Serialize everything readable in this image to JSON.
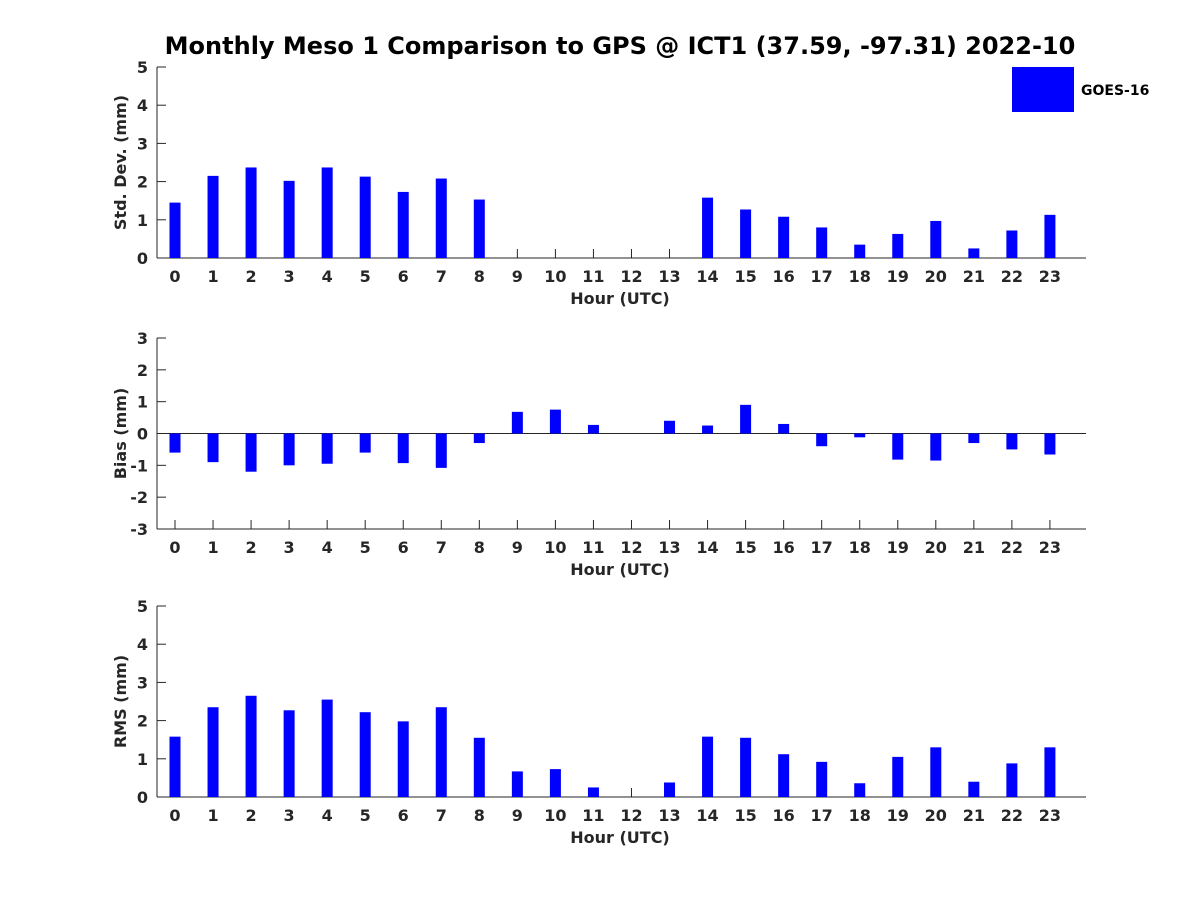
{
  "figure": {
    "title": "Monthly Meso 1 Comparison to GPS @ ICT1 (37.59, -97.31) 2022-10",
    "legend": {
      "label": "GOES-16",
      "color": "#0000ff",
      "position": "top-right"
    }
  },
  "chart_data": [
    {
      "type": "bar",
      "categories": [
        "0",
        "1",
        "2",
        "3",
        "4",
        "5",
        "6",
        "7",
        "8",
        "9",
        "10",
        "11",
        "12",
        "13",
        "14",
        "15",
        "16",
        "17",
        "18",
        "19",
        "20",
        "21",
        "22",
        "23"
      ],
      "series": [
        {
          "name": "GOES-16",
          "color": "#0000ff",
          "values": [
            1.45,
            2.15,
            2.37,
            2.02,
            2.37,
            2.13,
            1.73,
            2.08,
            1.53,
            0,
            0,
            0,
            0,
            0,
            1.58,
            1.27,
            1.08,
            0.8,
            0.35,
            0.63,
            0.97,
            0.25,
            0.72,
            1.13
          ]
        }
      ],
      "xlabel": "Hour (UTC)",
      "ylabel": "Std. Dev. (mm)",
      "ylim": [
        0,
        5
      ],
      "yticks": [
        "0",
        "1",
        "2",
        "3",
        "4",
        "5"
      ]
    },
    {
      "type": "bar",
      "categories": [
        "0",
        "1",
        "2",
        "3",
        "4",
        "5",
        "6",
        "7",
        "8",
        "9",
        "10",
        "11",
        "12",
        "13",
        "14",
        "15",
        "16",
        "17",
        "18",
        "19",
        "20",
        "21",
        "22",
        "23"
      ],
      "series": [
        {
          "name": "GOES-16",
          "color": "#0000ff",
          "values": [
            -0.6,
            -0.9,
            -1.2,
            -1.0,
            -0.95,
            -0.6,
            -0.93,
            -1.08,
            -0.3,
            0.68,
            0.75,
            0.27,
            0,
            0.4,
            0.25,
            0.9,
            0.3,
            -0.4,
            -0.12,
            -0.82,
            -0.85,
            -0.3,
            -0.5,
            -0.66
          ]
        }
      ],
      "xlabel": "Hour (UTC)",
      "ylabel": "Bias (mm)",
      "ylim": [
        -3,
        3
      ],
      "yticks": [
        "-3",
        "-2",
        "-1",
        "0",
        "1",
        "2",
        "3"
      ]
    },
    {
      "type": "bar",
      "categories": [
        "0",
        "1",
        "2",
        "3",
        "4",
        "5",
        "6",
        "7",
        "8",
        "9",
        "10",
        "11",
        "12",
        "13",
        "14",
        "15",
        "16",
        "17",
        "18",
        "19",
        "20",
        "21",
        "22",
        "23"
      ],
      "series": [
        {
          "name": "GOES-16",
          "color": "#0000ff",
          "values": [
            1.58,
            2.35,
            2.65,
            2.27,
            2.55,
            2.22,
            1.98,
            2.35,
            1.55,
            0.67,
            0.73,
            0.25,
            0,
            0.38,
            1.58,
            1.55,
            1.12,
            0.92,
            0.36,
            1.05,
            1.3,
            0.4,
            0.88,
            1.3
          ]
        }
      ],
      "xlabel": "Hour (UTC)",
      "ylabel": "RMS (mm)",
      "ylim": [
        0,
        5
      ],
      "yticks": [
        "0",
        "1",
        "2",
        "3",
        "4",
        "5"
      ]
    }
  ]
}
